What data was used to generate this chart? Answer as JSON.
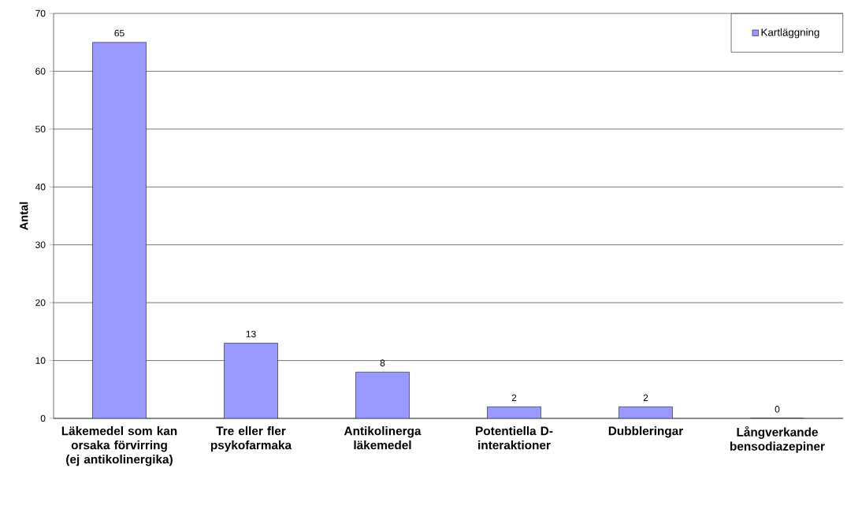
{
  "chart_data": {
    "type": "bar",
    "ylabel": "Antal",
    "categories": [
      "Läkemedel som kan orsaka förvirring (ej antikolinergika)",
      "Tre eller fler psykofarmaka",
      "Antikolinerga läkemedel",
      "Potentiella D-interaktioner",
      "Dubbleringar",
      "Långverkande bensodiazepiner"
    ],
    "series": [
      {
        "name": "Kartläggning",
        "color": "#9999ff",
        "values": [
          65,
          13,
          8,
          2,
          2,
          0
        ]
      }
    ],
    "ylim": [
      0,
      70
    ],
    "yticks": [
      0,
      10,
      20,
      30,
      40,
      50,
      60,
      70
    ],
    "grid": "y",
    "legend": "top right",
    "data_labels": true
  }
}
